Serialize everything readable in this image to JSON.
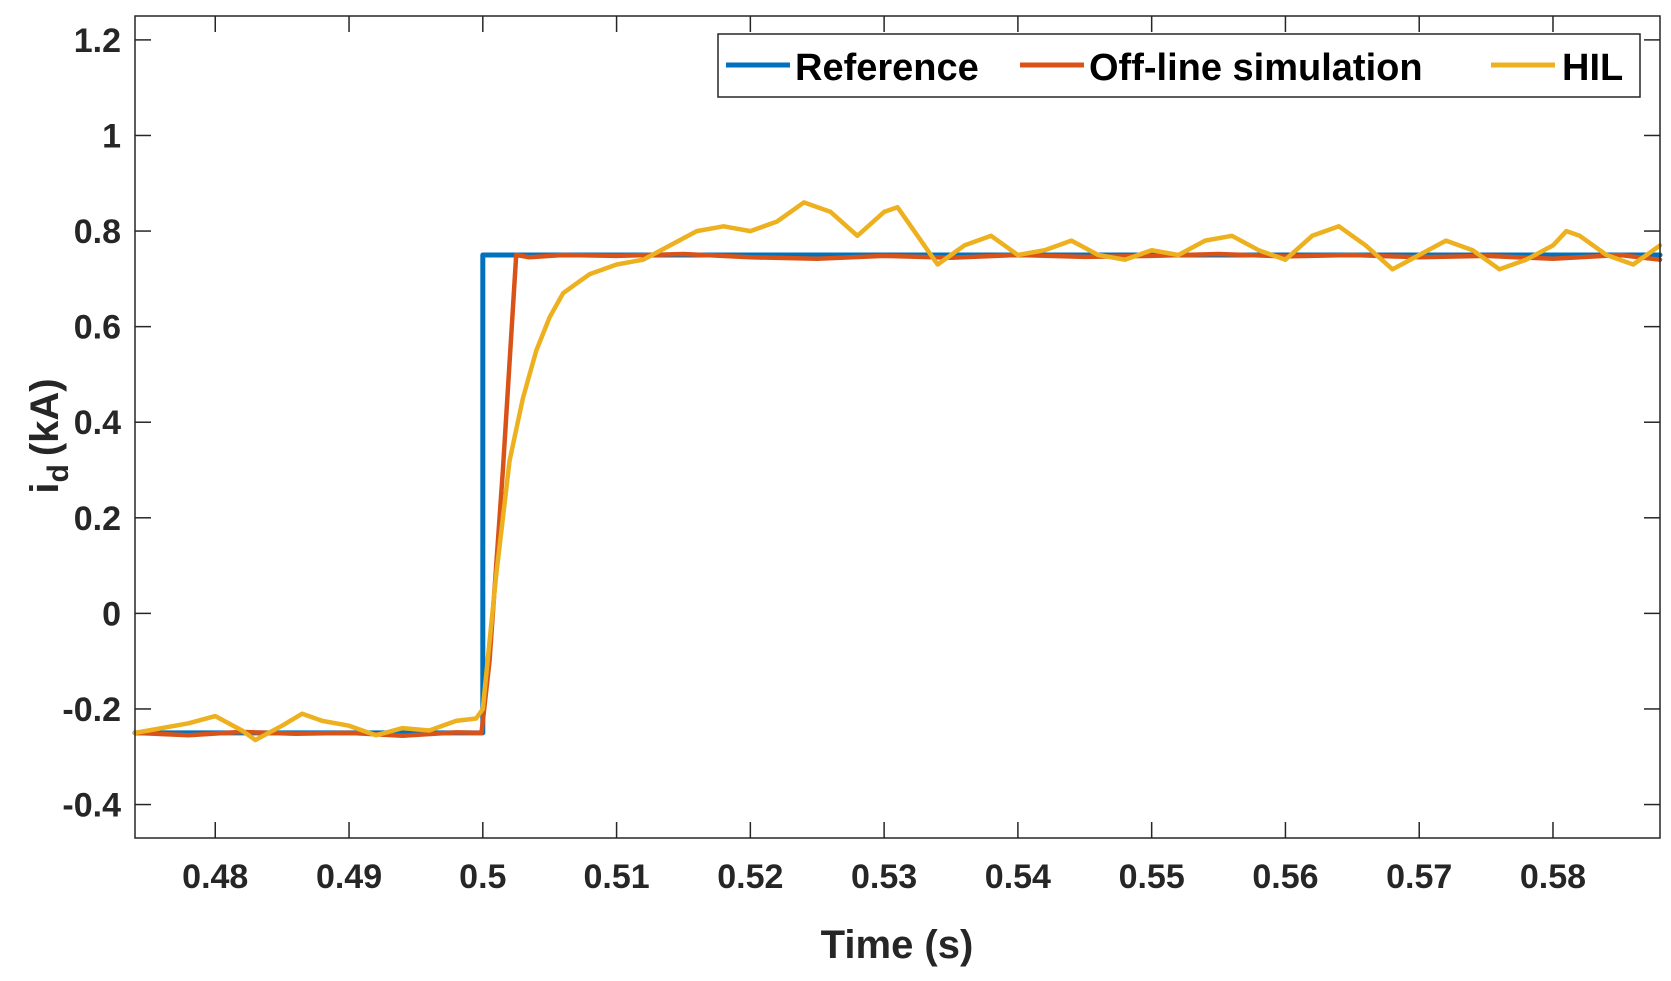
{
  "chart_data": {
    "type": "line",
    "xlabel": "Time (s)",
    "ylabel": "i_d (kA)",
    "ylabel_parts": {
      "main": "i",
      "sub": "d",
      "unit": "(kA)"
    },
    "xlim": [
      0.474,
      0.588
    ],
    "ylim": [
      -0.47,
      1.25
    ],
    "x_ticks": [
      0.48,
      0.49,
      0.5,
      0.51,
      0.52,
      0.53,
      0.54,
      0.55,
      0.56,
      0.57,
      0.58
    ],
    "x_tick_labels": [
      "0.48",
      "0.49",
      "0.5",
      "0.51",
      "0.52",
      "0.53",
      "0.54",
      "0.55",
      "0.56",
      "0.57",
      "0.58"
    ],
    "y_ticks": [
      -0.4,
      -0.2,
      0,
      0.2,
      0.4,
      0.6,
      0.8,
      1,
      1.2
    ],
    "y_tick_labels": [
      "-0.4",
      "-0.2",
      "0",
      "0.2",
      "0.4",
      "0.6",
      "0.8",
      "1",
      "1.2"
    ],
    "legend_position": "top-right",
    "series": [
      {
        "name": "Reference",
        "color": "#0072BD",
        "x": [
          0.474,
          0.5,
          0.5,
          0.588
        ],
        "values": [
          -0.25,
          -0.25,
          0.75,
          0.75
        ]
      },
      {
        "name": "Off-line simulation",
        "color": "#D95319",
        "x": [
          0.474,
          0.478,
          0.482,
          0.486,
          0.49,
          0.494,
          0.498,
          0.4999,
          0.5005,
          0.5015,
          0.5025,
          0.5035,
          0.506,
          0.51,
          0.515,
          0.52,
          0.525,
          0.53,
          0.535,
          0.54,
          0.545,
          0.55,
          0.555,
          0.56,
          0.565,
          0.57,
          0.575,
          0.58,
          0.585,
          0.588
        ],
        "values": [
          -0.25,
          -0.255,
          -0.248,
          -0.252,
          -0.25,
          -0.256,
          -0.249,
          -0.25,
          -0.1,
          0.3,
          0.75,
          0.745,
          0.75,
          0.748,
          0.752,
          0.745,
          0.742,
          0.748,
          0.744,
          0.75,
          0.746,
          0.748,
          0.752,
          0.747,
          0.75,
          0.745,
          0.748,
          0.742,
          0.75,
          0.74
        ]
      },
      {
        "name": "HIL",
        "color": "#EDB120",
        "x": [
          0.474,
          0.476,
          0.478,
          0.48,
          0.482,
          0.483,
          0.485,
          0.4865,
          0.488,
          0.49,
          0.492,
          0.494,
          0.496,
          0.498,
          0.4995,
          0.5,
          0.501,
          0.502,
          0.503,
          0.504,
          0.505,
          0.506,
          0.507,
          0.508,
          0.51,
          0.512,
          0.514,
          0.516,
          0.518,
          0.52,
          0.522,
          0.524,
          0.526,
          0.528,
          0.53,
          0.531,
          0.532,
          0.534,
          0.536,
          0.538,
          0.54,
          0.542,
          0.544,
          0.546,
          0.548,
          0.55,
          0.552,
          0.554,
          0.556,
          0.558,
          0.56,
          0.562,
          0.564,
          0.566,
          0.568,
          0.57,
          0.572,
          0.574,
          0.576,
          0.578,
          0.58,
          0.581,
          0.582,
          0.584,
          0.586,
          0.588
        ],
        "values": [
          -0.25,
          -0.24,
          -0.23,
          -0.215,
          -0.245,
          -0.265,
          -0.235,
          -0.21,
          -0.225,
          -0.235,
          -0.255,
          -0.24,
          -0.245,
          -0.225,
          -0.22,
          -0.2,
          0.08,
          0.32,
          0.45,
          0.55,
          0.62,
          0.67,
          0.69,
          0.71,
          0.73,
          0.74,
          0.77,
          0.8,
          0.81,
          0.8,
          0.82,
          0.86,
          0.84,
          0.79,
          0.84,
          0.85,
          0.81,
          0.73,
          0.77,
          0.79,
          0.75,
          0.76,
          0.78,
          0.75,
          0.74,
          0.76,
          0.75,
          0.78,
          0.79,
          0.76,
          0.74,
          0.79,
          0.81,
          0.77,
          0.72,
          0.75,
          0.78,
          0.76,
          0.72,
          0.74,
          0.77,
          0.8,
          0.79,
          0.75,
          0.73,
          0.77
        ]
      }
    ]
  }
}
